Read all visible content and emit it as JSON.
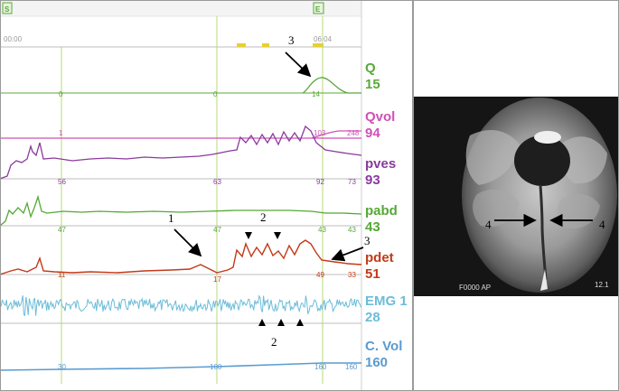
{
  "markers": {
    "start": "S",
    "end": "E"
  },
  "times": {
    "start": "00:00",
    "end": "06:04"
  },
  "channels": [
    {
      "id": "q",
      "label": "Q",
      "value": "15",
      "color": "#5aa83a",
      "baseline": [
        "0",
        "0",
        "14"
      ],
      "end_tag": ""
    },
    {
      "id": "qvol",
      "label": "Qvol",
      "value": "94",
      "color": "#d050b8",
      "baseline": [
        "1",
        "",
        "103"
      ],
      "end_tag": "248"
    },
    {
      "id": "pves",
      "label": "pves",
      "value": "93",
      "color": "#8a3a9c",
      "baseline": [
        "56",
        "63",
        "92"
      ],
      "end_tag": "73"
    },
    {
      "id": "pabd",
      "label": "pabd",
      "value": "43",
      "color": "#55a836",
      "baseline": [
        "47",
        "47",
        "43"
      ],
      "end_tag": "43"
    },
    {
      "id": "pdet",
      "label": "pdet",
      "value": "51",
      "color": "#c23a18",
      "baseline": [
        "11",
        "17",
        "49"
      ],
      "end_tag": "33"
    },
    {
      "id": "emg",
      "label": "EMG 1",
      "value": "28",
      "color": "#6cbcd8",
      "baseline": [
        "",
        "",
        ""
      ],
      "end_tag": ""
    },
    {
      "id": "cvol",
      "label": "C. Vol",
      "value": "160",
      "color": "#5a9ad0",
      "baseline": [
        "30",
        "100",
        "160"
      ],
      "end_tag": "160"
    }
  ],
  "annotations": {
    "a1": "1",
    "a2_top": "2",
    "a2_bottom": "2",
    "a3_top": "3",
    "a3_right": "3",
    "a4_left": "4",
    "a4_right": "4"
  }
}
